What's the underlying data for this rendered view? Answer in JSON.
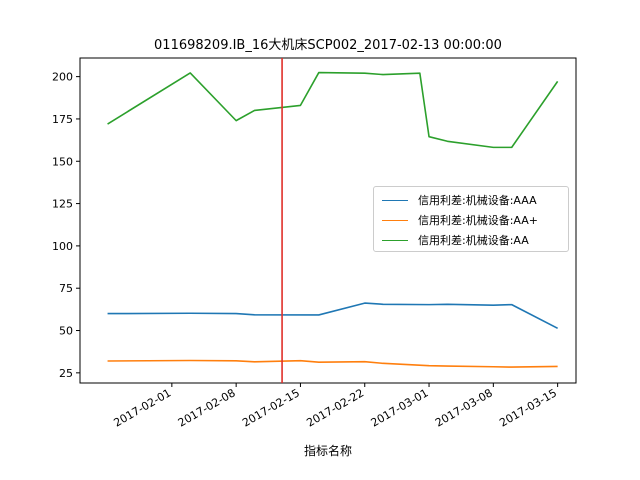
{
  "chart_data": {
    "type": "line",
    "title": "011698209.IB_16大机床SCP002_2017-02-13 00:00:00",
    "xlabel": "指标名称",
    "ylabel": "",
    "xlim": [
      "2017-01-22",
      "2017-03-17"
    ],
    "ylim": [
      19,
      211
    ],
    "x_ticks": [
      "2017-02-01",
      "2017-02-08",
      "2017-02-15",
      "2017-02-22",
      "2017-03-01",
      "2017-03-08",
      "2017-03-15"
    ],
    "y_ticks": [
      25,
      50,
      75,
      100,
      125,
      150,
      175,
      200
    ],
    "grid": false,
    "legend_position": "center-right",
    "vertical_marker": {
      "x": "2017-02-13",
      "color": "#e0302a"
    },
    "series": [
      {
        "name": "信用利差:机械设备:AAA",
        "color": "#1f77b4",
        "points": [
          [
            "2017-01-25",
            60.0
          ],
          [
            "2017-02-03",
            60.2
          ],
          [
            "2017-02-08",
            60.0
          ],
          [
            "2017-02-10",
            59.3
          ],
          [
            "2017-02-17",
            59.2
          ],
          [
            "2017-02-22",
            66.2
          ],
          [
            "2017-02-24",
            65.5
          ],
          [
            "2017-03-01",
            65.3
          ],
          [
            "2017-03-03",
            65.5
          ],
          [
            "2017-03-08",
            65.0
          ],
          [
            "2017-03-10",
            65.3
          ],
          [
            "2017-03-15",
            51.3
          ]
        ]
      },
      {
        "name": "信用利差:机械设备:AA+",
        "color": "#ff7f0e",
        "points": [
          [
            "2017-01-25",
            32.0
          ],
          [
            "2017-02-03",
            32.3
          ],
          [
            "2017-02-08",
            32.1
          ],
          [
            "2017-02-10",
            31.5
          ],
          [
            "2017-02-15",
            32.2
          ],
          [
            "2017-02-17",
            31.3
          ],
          [
            "2017-02-22",
            31.6
          ],
          [
            "2017-02-24",
            30.6
          ],
          [
            "2017-03-01",
            29.2
          ],
          [
            "2017-03-03",
            29.0
          ],
          [
            "2017-03-08",
            28.6
          ],
          [
            "2017-03-10",
            28.4
          ],
          [
            "2017-03-15",
            28.8
          ]
        ]
      },
      {
        "name": "信用利差:机械设备:AA",
        "color": "#2ca02c",
        "points": [
          [
            "2017-01-25",
            172.0
          ],
          [
            "2017-02-03",
            202.2
          ],
          [
            "2017-02-08",
            174.0
          ],
          [
            "2017-02-10",
            180.0
          ],
          [
            "2017-02-15",
            183.0
          ],
          [
            "2017-02-17",
            202.4
          ],
          [
            "2017-02-22",
            202.0
          ],
          [
            "2017-02-24",
            201.2
          ],
          [
            "2017-02-28",
            202.0
          ],
          [
            "2017-03-01",
            164.5
          ],
          [
            "2017-03-03",
            161.8
          ],
          [
            "2017-03-08",
            158.2
          ],
          [
            "2017-03-10",
            158.2
          ],
          [
            "2017-03-15",
            197.2
          ]
        ]
      }
    ]
  }
}
